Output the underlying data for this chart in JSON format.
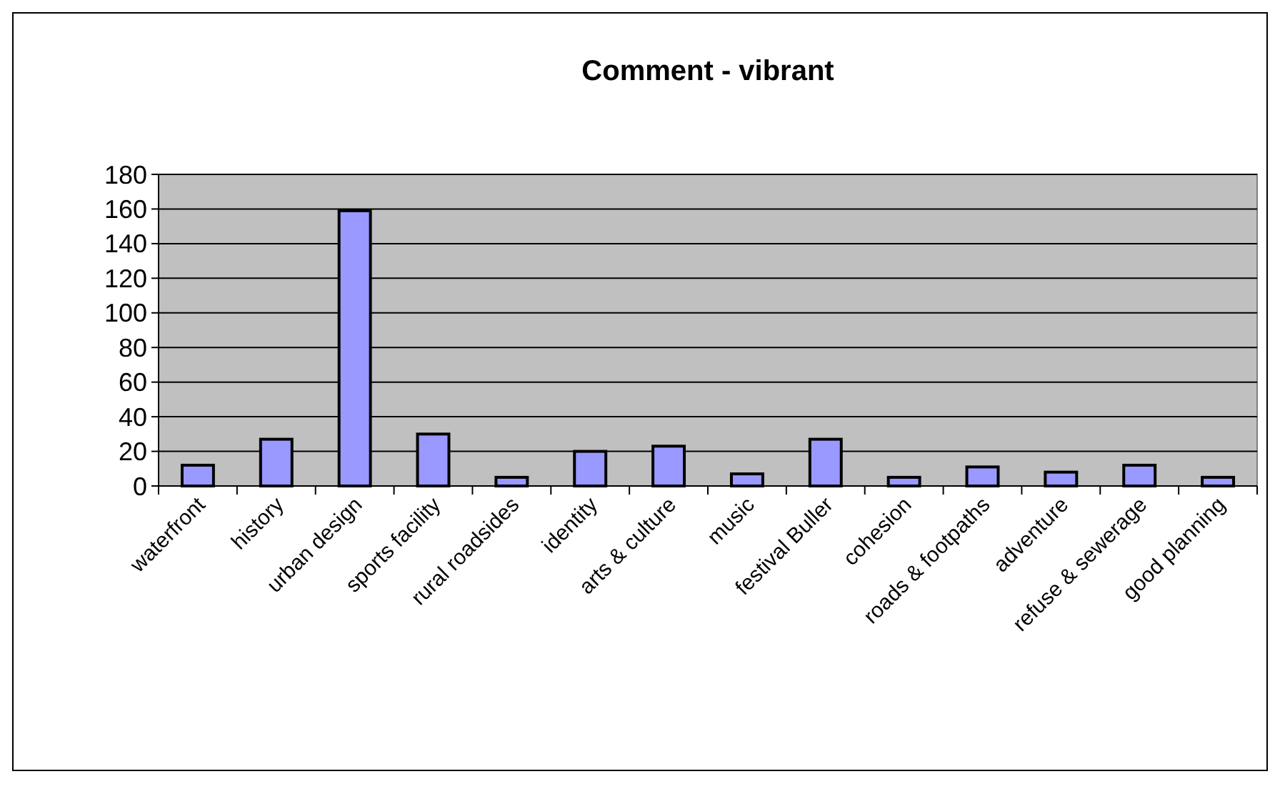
{
  "chart_data": {
    "type": "bar",
    "title": "Comment - vibrant",
    "categories": [
      "waterfront",
      "history",
      "urban design",
      "sports facility",
      "rural roadsides",
      "identity",
      "arts & culture",
      "music",
      "festival Buller",
      "cohesion",
      "roads & footpaths",
      "adventure",
      "refuse & sewerage",
      "good planning"
    ],
    "values": [
      12,
      27,
      159,
      30,
      5,
      20,
      23,
      7,
      27,
      5,
      11,
      8,
      12,
      5
    ],
    "color": "#9999ff",
    "ylim": [
      0,
      180
    ],
    "yticks": [
      0,
      20,
      40,
      60,
      80,
      100,
      120,
      140,
      160,
      180
    ],
    "grid": "y"
  }
}
